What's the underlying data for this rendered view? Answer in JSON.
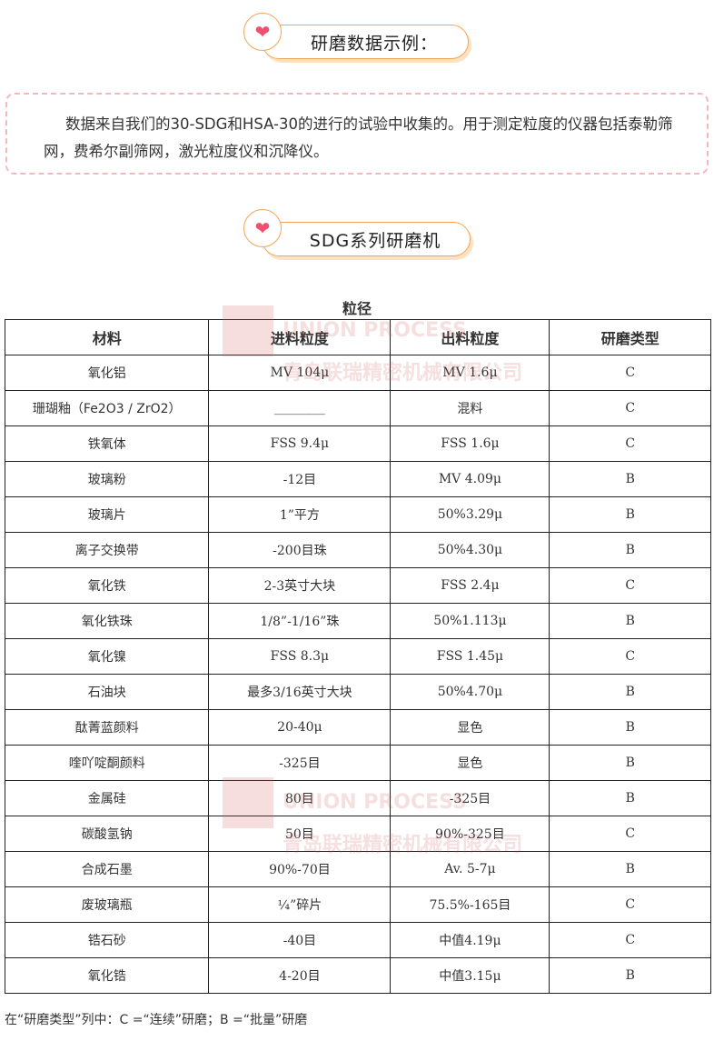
{
  "section1": {
    "title": "研磨数据示例：",
    "icon": "hearts-icon"
  },
  "intro": "数据来自我们的30-SDG和HSA-30的进行的试验中收集的。用于测定粒度的仪器包括泰勒筛网，费希尔副筛网，激光粒度仪和沉降仪。",
  "section2": {
    "title": "SDG系列研磨机",
    "icon": "hearts-icon"
  },
  "table": {
    "caption": "粒径",
    "headers": [
      "材料",
      "进料粒度",
      "出料粒度",
      "研磨类型"
    ],
    "rows": [
      [
        "氧化铝",
        "MV 104μ",
        "MV 1.6μ",
        "C"
      ],
      [
        "珊瑚釉（Fe2O3 / ZrO2）",
        "________",
        "混料",
        "C"
      ],
      [
        "铁氧体",
        "FSS 9.4μ",
        "FSS 1.6μ",
        "C"
      ],
      [
        "玻璃粉",
        "-12目",
        "MV 4.09μ",
        "B"
      ],
      [
        "玻璃片",
        "1”平方",
        "50%3.29μ",
        "B"
      ],
      [
        "离子交换带",
        "-200目珠",
        "50%4.30μ",
        "B"
      ],
      [
        "氧化铁",
        "2-3英寸大块",
        "FSS 2.4μ",
        "C"
      ],
      [
        "氧化铁珠",
        "1/8”-1/16”珠",
        "50%1.113μ",
        "B"
      ],
      [
        "氧化镍",
        "FSS 8.3μ",
        "FSS 1.45μ",
        "C"
      ],
      [
        "石油块",
        "最多3/16英寸大块",
        "50%4.70μ",
        "B"
      ],
      [
        "酞菁蓝颜料",
        "20-40μ",
        "显色",
        "B"
      ],
      [
        "喹吖啶酮颜料",
        "-325目",
        "显色",
        "B"
      ],
      [
        "金属硅",
        "80目",
        "-325目",
        "B"
      ],
      [
        "碳酸氢钠",
        "50目",
        "90%-325目",
        "C"
      ],
      [
        "合成石墨",
        "90%-70目",
        "Av. 5-7μ",
        "B"
      ],
      [
        "废玻璃瓶",
        "¼”碎片",
        "75.5%-165目",
        "C"
      ],
      [
        "锆石砂",
        "-40目",
        "中值4.19μ",
        "C"
      ],
      [
        "氧化锆",
        "4-20目",
        "中值3.15μ",
        "B"
      ]
    ]
  },
  "watermark": {
    "line1": "UNION PROCESS",
    "line2": "青岛联瑞精密机械有限公司"
  },
  "footnote": "在“研磨类型”列中：C =“连续”研磨；B =“批量”研磨"
}
